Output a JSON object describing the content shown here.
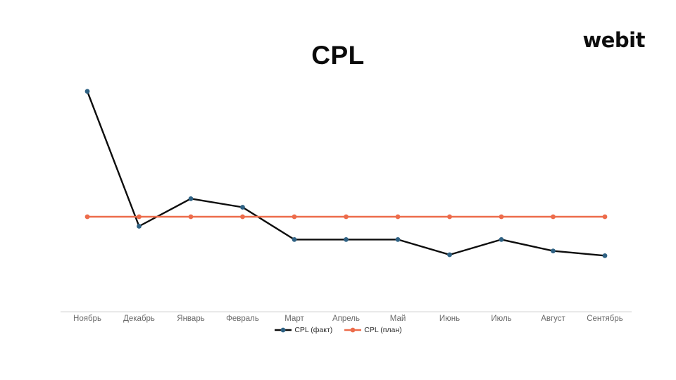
{
  "header": {
    "title": "CPL",
    "logo": "webit"
  },
  "chart_data": {
    "type": "line",
    "title": "CPL",
    "categories": [
      "Ноябрь",
      "Декабрь",
      "Январь",
      "Февраль",
      "Март",
      "Апрель",
      "Май",
      "Июнь",
      "Июль",
      "Август",
      "Сентябрь"
    ],
    "series": [
      {
        "name": "CPL (факт)",
        "line_color": "#0d0d0d",
        "marker_color": "#2f6284",
        "values": [
          232,
          90,
          119,
          110,
          76,
          76,
          76,
          60,
          76,
          64,
          59
        ]
      },
      {
        "name": "CPL (план)",
        "line_color": "#ed6c4b",
        "marker_color": "#ed6c4b",
        "values": [
          100,
          100,
          100,
          100,
          100,
          100,
          100,
          100,
          100,
          100,
          100
        ]
      }
    ],
    "xlabel": "",
    "ylabel": "",
    "ylim": [
      0,
      250
    ],
    "y_axis_visible": false,
    "grid": false,
    "legend_position": "bottom",
    "value_units": "relative, план = 100 (ось значений не показана)",
    "axis_line_color": "#e2e2e2",
    "tick_label_color": "#6b6b6b"
  }
}
